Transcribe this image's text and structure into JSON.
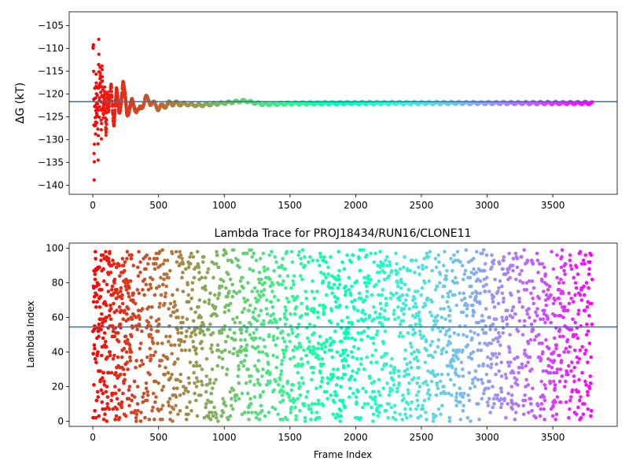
{
  "chart_data": [
    {
      "type": "scatter",
      "title": "",
      "xlabel": "",
      "ylabel": "ΔG (kT)",
      "xlim": [
        -180,
        3990
      ],
      "ylim": [
        -142,
        -102
      ],
      "xticks": [
        0,
        500,
        1000,
        1500,
        2000,
        2500,
        3000,
        3500
      ],
      "xtick_labels": [
        "0",
        "500",
        "1000",
        "1500",
        "2000",
        "2500",
        "3000",
        "3500"
      ],
      "yticks": [
        -140,
        -135,
        -130,
        -125,
        -120,
        -115,
        -110,
        -105
      ],
      "ytick_labels": [
        "−140",
        "−135",
        "−130",
        "−125",
        "−120",
        "−115",
        "−110",
        "−105"
      ],
      "colormap": "rainbow (red at start → violet at end)",
      "frames": 3800,
      "converged_value": -122,
      "hline": {
        "y": -121.7,
        "color": "#1f77b4"
      },
      "series_keypoints": {
        "x": [
          5,
          10,
          15,
          20,
          25,
          30,
          35,
          40,
          45,
          50,
          55,
          60,
          65,
          70,
          80,
          90,
          100,
          110,
          120,
          140,
          160,
          180,
          200,
          230,
          260,
          300,
          350,
          400,
          500,
          600,
          800,
          1000,
          1150,
          1300,
          1500,
          2000,
          2500,
          3000,
          3500,
          3800
        ],
        "y": [
          -110,
          -140,
          -120,
          -130,
          -116,
          -126,
          -118,
          -133,
          -107,
          -124,
          -114,
          -120,
          -131,
          -115,
          -126,
          -118,
          -128,
          -119,
          -125,
          -118,
          -126,
          -120,
          -124,
          -118,
          -124,
          -122,
          -124,
          -121,
          -123,
          -122,
          -122.5,
          -122,
          -121.5,
          -122.3,
          -122.1,
          -122,
          -122,
          -122,
          -122,
          -122
        ]
      }
    },
    {
      "type": "scatter",
      "title": "Lambda Trace for PROJ18434/RUN16/CLONE11",
      "xlabel": "Frame Index",
      "ylabel": "Lambda Index",
      "xlim": [
        -180,
        3990
      ],
      "ylim": [
        -3,
        103
      ],
      "xticks": [
        0,
        500,
        1000,
        1500,
        2000,
        2500,
        3000,
        3500
      ],
      "xtick_labels": [
        "0",
        "500",
        "1000",
        "1500",
        "2000",
        "2500",
        "3000",
        "3500"
      ],
      "yticks": [
        0,
        20,
        40,
        60,
        80,
        100
      ],
      "ytick_labels": [
        "0",
        "20",
        "40",
        "60",
        "80",
        "100"
      ],
      "colormap": "rainbow (red at start → violet at end)",
      "frames": 3800,
      "lambda_range": [
        0,
        99
      ],
      "hline": {
        "y": 54.5,
        "color": "#1f77b4"
      }
    }
  ]
}
